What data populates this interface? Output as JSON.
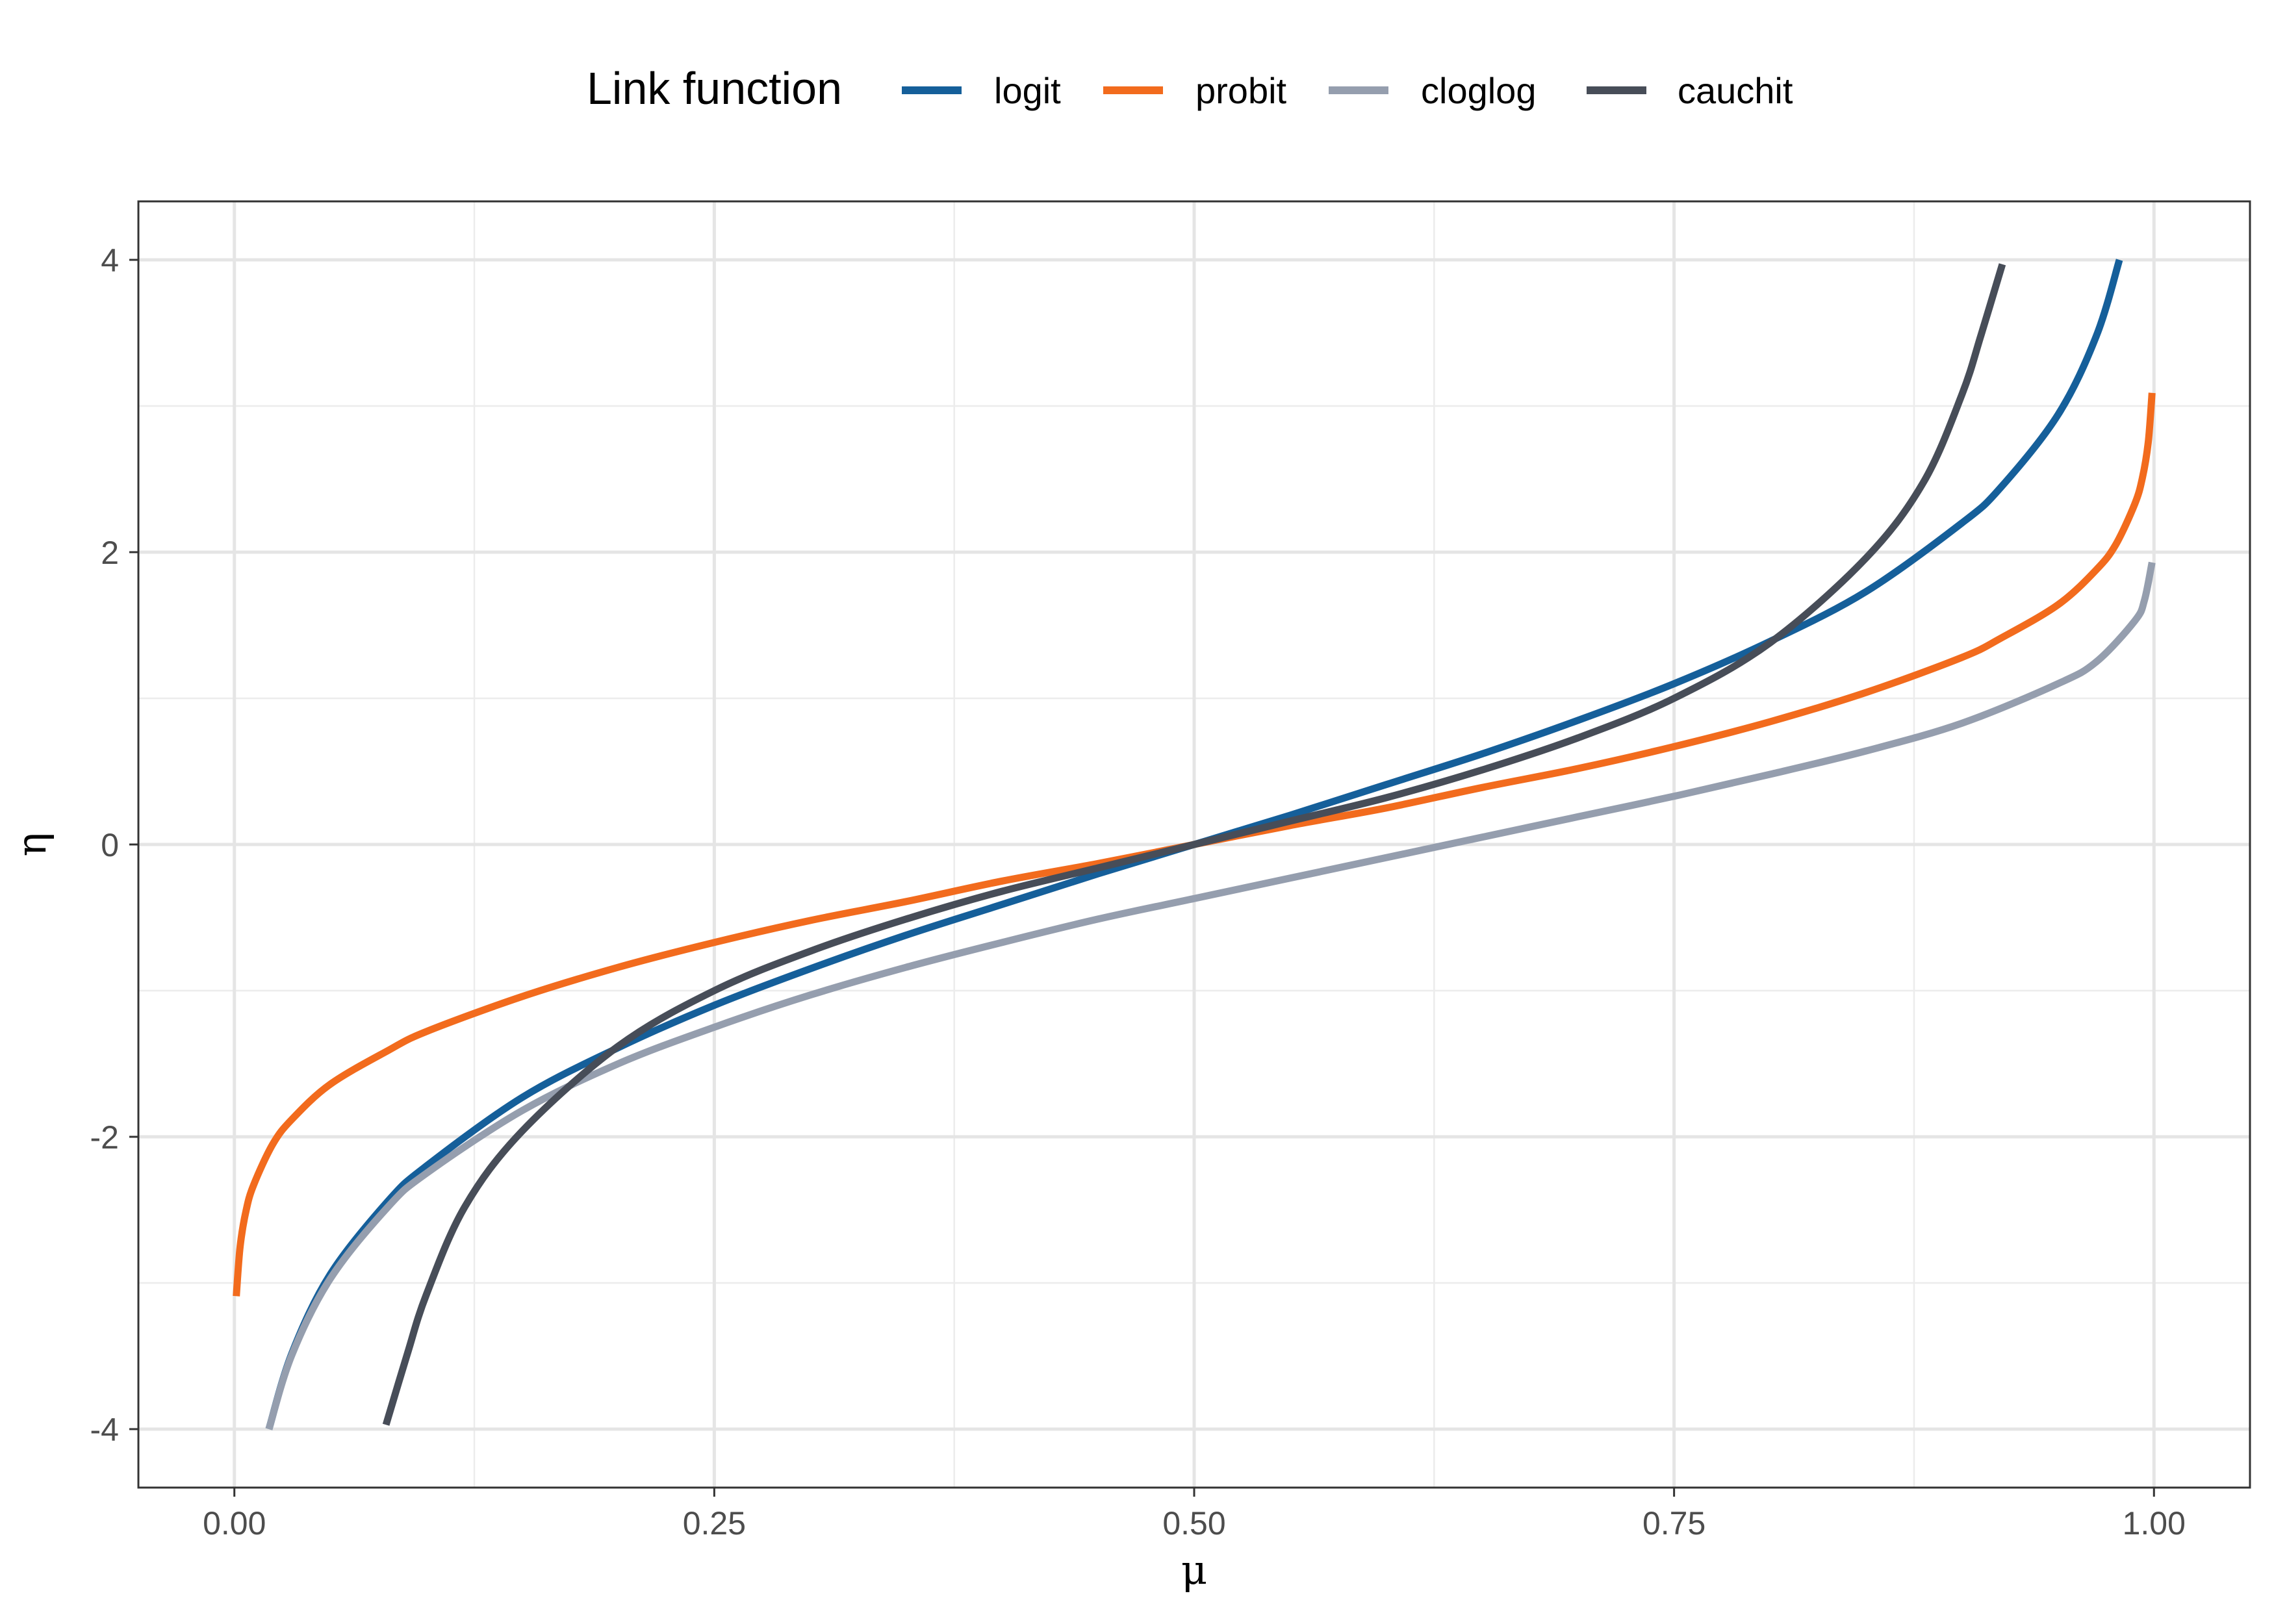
{
  "chart_data": {
    "type": "line",
    "title": "",
    "xlabel": "μ",
    "ylabel": "η",
    "xlim": [
      -0.05,
      1.05
    ],
    "ylim": [
      -4.4,
      4.4
    ],
    "x_ticks": [
      {
        "value": 0.0,
        "label": "0.00"
      },
      {
        "value": 0.25,
        "label": "0.25"
      },
      {
        "value": 0.5,
        "label": "0.50"
      },
      {
        "value": 0.75,
        "label": "0.75"
      },
      {
        "value": 1.0,
        "label": "1.00"
      }
    ],
    "y_ticks": [
      {
        "value": -4,
        "label": "-4"
      },
      {
        "value": -2,
        "label": "-2"
      },
      {
        "value": 0,
        "label": "0"
      },
      {
        "value": 2,
        "label": "2"
      },
      {
        "value": 4,
        "label": "4"
      }
    ],
    "grid": true,
    "legend": {
      "title": "Link function",
      "position": "top"
    },
    "series": [
      {
        "name": "logit",
        "color": "#155F9A",
        "points": [
          [
            0.018,
            -4.0
          ],
          [
            0.03,
            -3.48
          ],
          [
            0.05,
            -2.94
          ],
          [
            0.08,
            -2.44
          ],
          [
            0.1,
            -2.2
          ],
          [
            0.15,
            -1.73
          ],
          [
            0.2,
            -1.39
          ],
          [
            0.25,
            -1.1
          ],
          [
            0.3,
            -0.85
          ],
          [
            0.35,
            -0.62
          ],
          [
            0.4,
            -0.41
          ],
          [
            0.45,
            -0.2
          ],
          [
            0.5,
            0.0
          ],
          [
            0.55,
            0.2
          ],
          [
            0.6,
            0.41
          ],
          [
            0.65,
            0.62
          ],
          [
            0.7,
            0.85
          ],
          [
            0.75,
            1.1
          ],
          [
            0.8,
            1.39
          ],
          [
            0.85,
            1.73
          ],
          [
            0.9,
            2.2
          ],
          [
            0.92,
            2.44
          ],
          [
            0.95,
            2.94
          ],
          [
            0.97,
            3.48
          ],
          [
            0.982,
            4.0
          ]
        ]
      },
      {
        "name": "probit",
        "color": "#F26B1D",
        "points": [
          [
            0.001,
            -3.09
          ],
          [
            0.003,
            -2.75
          ],
          [
            0.006,
            -2.51
          ],
          [
            0.01,
            -2.33
          ],
          [
            0.02,
            -2.05
          ],
          [
            0.03,
            -1.88
          ],
          [
            0.05,
            -1.64
          ],
          [
            0.08,
            -1.41
          ],
          [
            0.1,
            -1.28
          ],
          [
            0.15,
            -1.04
          ],
          [
            0.2,
            -0.84
          ],
          [
            0.25,
            -0.67
          ],
          [
            0.3,
            -0.52
          ],
          [
            0.35,
            -0.39
          ],
          [
            0.4,
            -0.25
          ],
          [
            0.45,
            -0.13
          ],
          [
            0.5,
            0.0
          ],
          [
            0.55,
            0.13
          ],
          [
            0.6,
            0.25
          ],
          [
            0.65,
            0.39
          ],
          [
            0.7,
            0.52
          ],
          [
            0.75,
            0.67
          ],
          [
            0.8,
            0.84
          ],
          [
            0.85,
            1.04
          ],
          [
            0.9,
            1.28
          ],
          [
            0.92,
            1.41
          ],
          [
            0.95,
            1.64
          ],
          [
            0.97,
            1.88
          ],
          [
            0.98,
            2.05
          ],
          [
            0.99,
            2.33
          ],
          [
            0.994,
            2.51
          ],
          [
            0.997,
            2.75
          ],
          [
            0.999,
            3.09
          ]
        ]
      },
      {
        "name": "cloglog",
        "color": "#959EAE",
        "points": [
          [
            0.018,
            -4.0
          ],
          [
            0.03,
            -3.49
          ],
          [
            0.05,
            -2.97
          ],
          [
            0.08,
            -2.48
          ],
          [
            0.1,
            -2.25
          ],
          [
            0.15,
            -1.82
          ],
          [
            0.2,
            -1.5
          ],
          [
            0.25,
            -1.25
          ],
          [
            0.3,
            -1.03
          ],
          [
            0.35,
            -0.84
          ],
          [
            0.4,
            -0.67
          ],
          [
            0.45,
            -0.51
          ],
          [
            0.5,
            -0.37
          ],
          [
            0.55,
            -0.23
          ],
          [
            0.6,
            -0.09
          ],
          [
            0.65,
            0.05
          ],
          [
            0.7,
            0.19
          ],
          [
            0.75,
            0.33
          ],
          [
            0.8,
            0.48
          ],
          [
            0.85,
            0.64
          ],
          [
            0.9,
            0.83
          ],
          [
            0.95,
            1.1
          ],
          [
            0.97,
            1.25
          ],
          [
            0.99,
            1.53
          ],
          [
            0.995,
            1.67
          ],
          [
            0.999,
            1.93
          ]
        ]
      },
      {
        "name": "cauchit",
        "color": "#474D58",
        "points": [
          [
            0.079,
            -3.97
          ],
          [
            0.09,
            -3.49
          ],
          [
            0.1,
            -3.08
          ],
          [
            0.12,
            -2.48
          ],
          [
            0.15,
            -1.96
          ],
          [
            0.2,
            -1.38
          ],
          [
            0.25,
            -1.0
          ],
          [
            0.3,
            -0.73
          ],
          [
            0.35,
            -0.51
          ],
          [
            0.4,
            -0.32
          ],
          [
            0.45,
            -0.16
          ],
          [
            0.5,
            0.0
          ],
          [
            0.55,
            0.16
          ],
          [
            0.6,
            0.32
          ],
          [
            0.65,
            0.51
          ],
          [
            0.7,
            0.73
          ],
          [
            0.75,
            1.0
          ],
          [
            0.8,
            1.38
          ],
          [
            0.85,
            1.96
          ],
          [
            0.88,
            2.48
          ],
          [
            0.9,
            3.08
          ],
          [
            0.91,
            3.49
          ],
          [
            0.921,
            3.97
          ]
        ]
      }
    ]
  }
}
